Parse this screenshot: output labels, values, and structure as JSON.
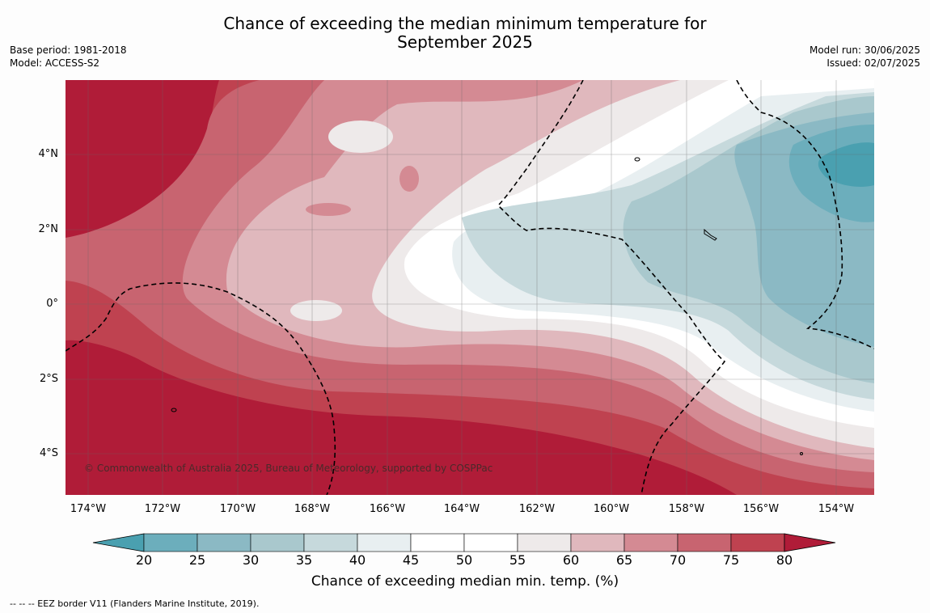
{
  "title_line1": "Chance of exceeding the median minimum temperature for",
  "title_line2": "September 2025",
  "meta_left": {
    "base_period": "Base period: 1981-2018",
    "model": "Model: ACCESS-S2"
  },
  "meta_right": {
    "model_run": "Model run: 30/06/2025",
    "issued": "Issued: 02/07/2025"
  },
  "lat_labels": [
    "4°N",
    "2°N",
    "0°",
    "2°S",
    "4°S"
  ],
  "lon_labels": [
    "174°W",
    "172°W",
    "170°W",
    "168°W",
    "166°W",
    "164°W",
    "162°W",
    "160°W",
    "158°W",
    "156°W",
    "154°W"
  ],
  "copyright": "© Commonwealth of Australia 2025, Bureau of Meteorology, supported by COSPPac",
  "colorbar": {
    "ticks": [
      "20",
      "25",
      "30",
      "35",
      "40",
      "45",
      "50",
      "55",
      "60",
      "65",
      "70",
      "75",
      "80"
    ],
    "colors": [
      "#4aa0b0",
      "#6caebc",
      "#8bb9c4",
      "#a9c8cd",
      "#c6d9dc",
      "#e8eff1",
      "#ffffff",
      "#ffffff",
      "#eeeaea",
      "#e0b8bd",
      "#d48a93",
      "#c86470",
      "#bf4250",
      "#b01c38"
    ],
    "title": "Chance of exceeding median min. temp. (%)"
  },
  "footnote": "--  --  -- EEZ border V11 (Flanders Marine Institute, 2019)."
}
